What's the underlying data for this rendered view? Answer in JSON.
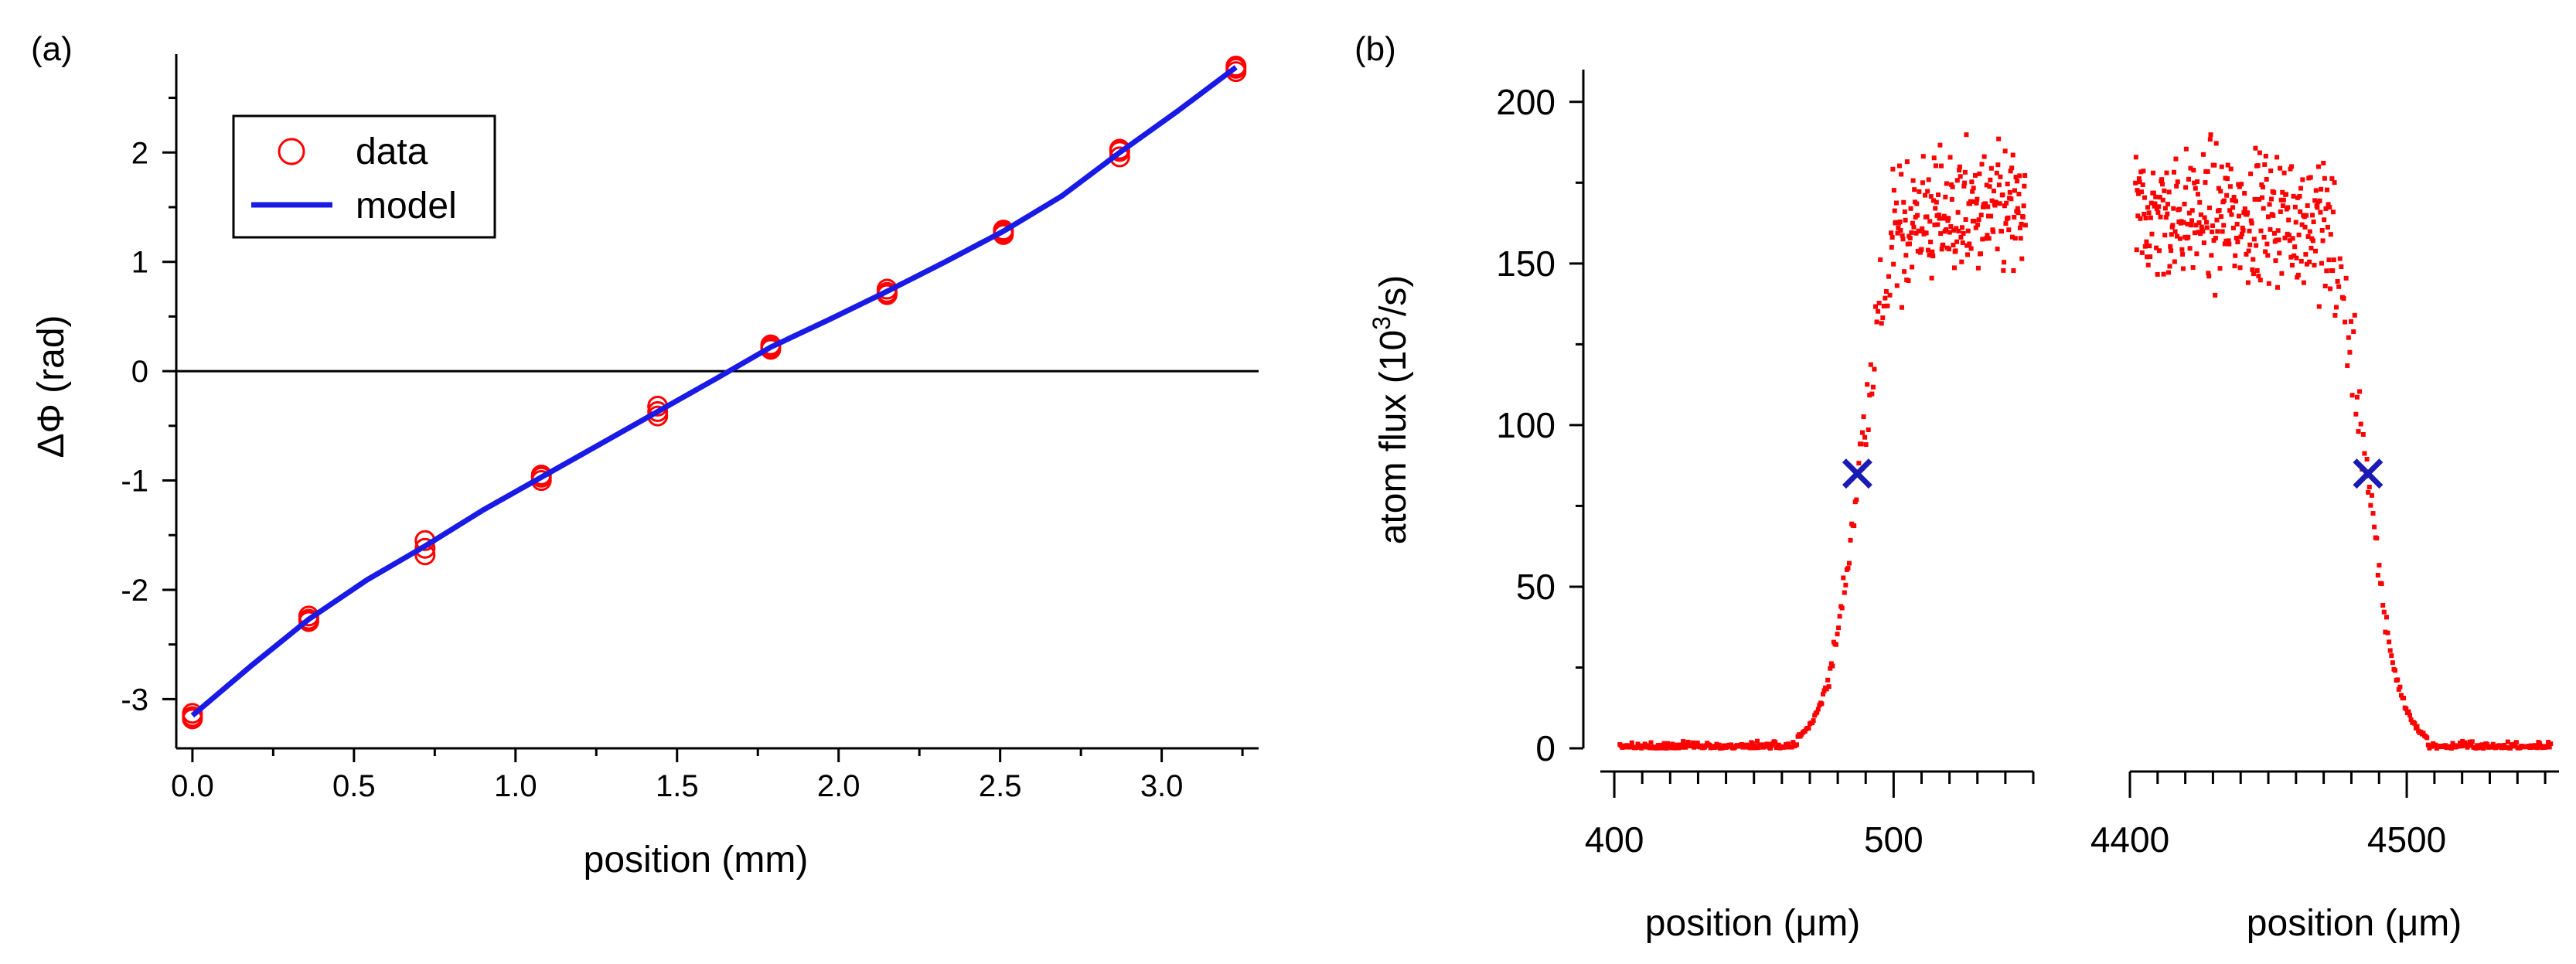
{
  "chart_data": [
    {
      "panel": "(a)",
      "type": "scatter",
      "title": "",
      "xlabel": "position (mm)",
      "ylabel": "ΔΦ (rad)",
      "xlim": [
        -0.05,
        3.3
      ],
      "ylim": [
        -3.45,
        2.9
      ],
      "xticks": [
        "0.0",
        "0.5",
        "1.0",
        "1.5",
        "2.0",
        "2.5",
        "3.0"
      ],
      "yticks": [
        "-3",
        "-2",
        "-1",
        "0",
        "1",
        "2"
      ],
      "zero_line": true,
      "legend": {
        "placement": "top-left",
        "entries": [
          "data",
          "model"
        ]
      },
      "series": [
        {
          "name": "data",
          "style": "open-circles",
          "color": "#ff0000",
          "points": [
            [
              0.0,
              -3.13
            ],
            [
              0.0,
              -3.18
            ],
            [
              0.0,
              -3.16
            ],
            [
              0.36,
              -2.24
            ],
            [
              0.36,
              -2.29
            ],
            [
              0.36,
              -2.27
            ],
            [
              0.72,
              -1.55
            ],
            [
              0.72,
              -1.62
            ],
            [
              0.72,
              -1.68
            ],
            [
              1.08,
              -0.95
            ],
            [
              1.08,
              -1.0
            ],
            [
              1.08,
              -0.97
            ],
            [
              1.44,
              -0.32
            ],
            [
              1.44,
              -0.37
            ],
            [
              1.44,
              -0.41
            ],
            [
              1.79,
              0.2
            ],
            [
              1.79,
              0.24
            ],
            [
              1.79,
              0.22
            ],
            [
              2.15,
              0.7
            ],
            [
              2.15,
              0.75
            ],
            [
              2.15,
              0.72
            ],
            [
              2.51,
              1.25
            ],
            [
              2.51,
              1.29
            ],
            [
              2.51,
              1.27
            ],
            [
              2.87,
              1.96
            ],
            [
              2.87,
              2.01
            ],
            [
              2.87,
              2.03
            ],
            [
              3.23,
              2.74
            ],
            [
              3.23,
              2.77
            ],
            [
              3.23,
              2.79
            ]
          ]
        },
        {
          "name": "model",
          "style": "line",
          "color": "#1a1ae6",
          "points": [
            [
              0.0,
              -3.15
            ],
            [
              0.18,
              -2.7
            ],
            [
              0.36,
              -2.27
            ],
            [
              0.54,
              -1.91
            ],
            [
              0.72,
              -1.6
            ],
            [
              0.9,
              -1.27
            ],
            [
              1.08,
              -0.97
            ],
            [
              1.26,
              -0.67
            ],
            [
              1.44,
              -0.37
            ],
            [
              1.62,
              -0.07
            ],
            [
              1.79,
              0.22
            ],
            [
              1.97,
              0.47
            ],
            [
              2.15,
              0.73
            ],
            [
              2.33,
              1.0
            ],
            [
              2.51,
              1.28
            ],
            [
              2.69,
              1.6
            ],
            [
              2.87,
              2.0
            ],
            [
              3.05,
              2.38
            ],
            [
              3.23,
              2.78
            ]
          ]
        }
      ]
    },
    {
      "panel": "(b)",
      "type": "scatter",
      "title": "",
      "ylabel": "atom flux (10³/s)",
      "ylabel_base": "atom flux (10",
      "ylabel_sup": "3",
      "ylabel_tail": "/s)",
      "ylim": [
        0,
        210
      ],
      "yticks": [
        "0",
        "50",
        "100",
        "150",
        "200"
      ],
      "marker_color": "#ff0000",
      "cross_color": "#1a1ab4",
      "segments": [
        {
          "xlabel": "position (μm)",
          "xlim": [
            395,
            550
          ],
          "xticks": [
            "400",
            "500"
          ],
          "edge": "rising",
          "edge_center": 487,
          "edge_width": 5.5,
          "plateau": 165,
          "plateau_spread": 30,
          "points": 340,
          "cross": [
            487,
            85
          ]
        },
        {
          "xlabel": "position (μm)",
          "xlim": [
            4400,
            4555
          ],
          "xticks": [
            "4400",
            "4500"
          ],
          "edge": "falling",
          "edge_center": 4486,
          "edge_width": 5.5,
          "plateau": 165,
          "plateau_spread": 30,
          "points": 340,
          "cross": [
            4486,
            85
          ]
        }
      ]
    }
  ]
}
